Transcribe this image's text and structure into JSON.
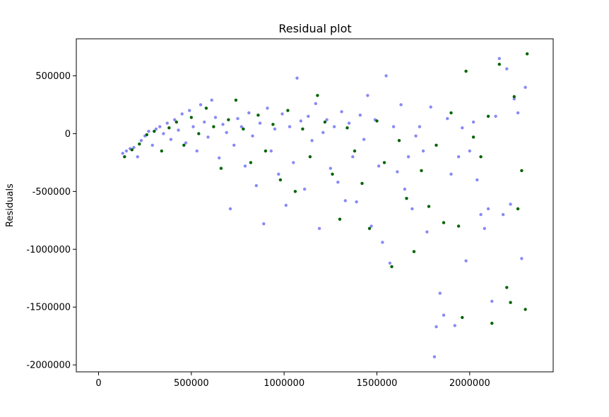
{
  "chart_data": {
    "type": "scatter",
    "title": "Residual plot",
    "xlabel": "",
    "ylabel": "Residuals",
    "xlim": [
      -120000,
      2450000
    ],
    "ylim": [
      -2060000,
      820000
    ],
    "x_ticks": [
      {
        "value": 0,
        "label": "0"
      },
      {
        "value": 500000,
        "label": "500000"
      },
      {
        "value": 1000000,
        "label": "1000000"
      },
      {
        "value": 1500000,
        "label": "1500000"
      },
      {
        "value": 2000000,
        "label": "2000000"
      }
    ],
    "y_ticks": [
      {
        "value": 500000,
        "label": "500000"
      },
      {
        "value": 0,
        "label": "0"
      },
      {
        "value": -500000,
        "label": "-500000"
      },
      {
        "value": -1000000,
        "label": "-1000000"
      },
      {
        "value": -1500000,
        "label": "-1500000"
      },
      {
        "value": -2000000,
        "label": "-2000000"
      }
    ],
    "grid": false,
    "legend": "none",
    "series": [
      {
        "color": "#3a3af0",
        "opacity": 0.6,
        "points": [
          [
            130000,
            -170000
          ],
          [
            150000,
            -150000
          ],
          [
            170000,
            -130000
          ],
          [
            190000,
            -120000
          ],
          [
            210000,
            -200000
          ],
          [
            230000,
            -60000
          ],
          [
            250000,
            -20000
          ],
          [
            270000,
            20000
          ],
          [
            290000,
            -100000
          ],
          [
            310000,
            40000
          ],
          [
            330000,
            60000
          ],
          [
            350000,
            0
          ],
          [
            370000,
            90000
          ],
          [
            390000,
            -50000
          ],
          [
            410000,
            120000
          ],
          [
            430000,
            30000
          ],
          [
            450000,
            170000
          ],
          [
            470000,
            -80000
          ],
          [
            490000,
            200000
          ],
          [
            510000,
            60000
          ],
          [
            530000,
            -150000
          ],
          [
            550000,
            250000
          ],
          [
            570000,
            100000
          ],
          [
            590000,
            -30000
          ],
          [
            610000,
            290000
          ],
          [
            630000,
            140000
          ],
          [
            650000,
            -210000
          ],
          [
            670000,
            80000
          ],
          [
            690000,
            10000
          ],
          [
            710000,
            -650000
          ],
          [
            730000,
            -100000
          ],
          [
            750000,
            130000
          ],
          [
            770000,
            60000
          ],
          [
            790000,
            -280000
          ],
          [
            810000,
            180000
          ],
          [
            830000,
            -20000
          ],
          [
            850000,
            -450000
          ],
          [
            870000,
            90000
          ],
          [
            890000,
            -780000
          ],
          [
            910000,
            220000
          ],
          [
            930000,
            -150000
          ],
          [
            950000,
            40000
          ],
          [
            970000,
            -350000
          ],
          [
            990000,
            170000
          ],
          [
            1010000,
            -620000
          ],
          [
            1030000,
            60000
          ],
          [
            1050000,
            -250000
          ],
          [
            1070000,
            480000
          ],
          [
            1090000,
            110000
          ],
          [
            1110000,
            -480000
          ],
          [
            1130000,
            150000
          ],
          [
            1150000,
            -60000
          ],
          [
            1170000,
            260000
          ],
          [
            1190000,
            -820000
          ],
          [
            1210000,
            10000
          ],
          [
            1230000,
            120000
          ],
          [
            1250000,
            -300000
          ],
          [
            1270000,
            60000
          ],
          [
            1290000,
            -420000
          ],
          [
            1310000,
            190000
          ],
          [
            1330000,
            -580000
          ],
          [
            1350000,
            90000
          ],
          [
            1370000,
            -200000
          ],
          [
            1390000,
            -590000
          ],
          [
            1410000,
            160000
          ],
          [
            1430000,
            -50000
          ],
          [
            1450000,
            330000
          ],
          [
            1470000,
            -800000
          ],
          [
            1490000,
            120000
          ],
          [
            1510000,
            -280000
          ],
          [
            1530000,
            -940000
          ],
          [
            1550000,
            500000
          ],
          [
            1570000,
            -1120000
          ],
          [
            1590000,
            60000
          ],
          [
            1610000,
            -330000
          ],
          [
            1630000,
            250000
          ],
          [
            1650000,
            -480000
          ],
          [
            1670000,
            -200000
          ],
          [
            1690000,
            -650000
          ],
          [
            1710000,
            -20000
          ],
          [
            1730000,
            60000
          ],
          [
            1750000,
            -150000
          ],
          [
            1770000,
            -850000
          ],
          [
            1790000,
            230000
          ],
          [
            1810000,
            -1930000
          ],
          [
            1820000,
            -1670000
          ],
          [
            1840000,
            -1380000
          ],
          [
            1860000,
            -1570000
          ],
          [
            1880000,
            130000
          ],
          [
            1900000,
            -350000
          ],
          [
            1920000,
            -1660000
          ],
          [
            1940000,
            -200000
          ],
          [
            1960000,
            50000
          ],
          [
            1980000,
            -1100000
          ],
          [
            2000000,
            -150000
          ],
          [
            2020000,
            100000
          ],
          [
            2040000,
            -400000
          ],
          [
            2060000,
            -700000
          ],
          [
            2080000,
            -820000
          ],
          [
            2100000,
            -650000
          ],
          [
            2120000,
            -1450000
          ],
          [
            2140000,
            150000
          ],
          [
            2160000,
            650000
          ],
          [
            2180000,
            -700000
          ],
          [
            2200000,
            560000
          ],
          [
            2220000,
            -610000
          ],
          [
            2240000,
            300000
          ],
          [
            2260000,
            180000
          ],
          [
            2280000,
            -1080000
          ],
          [
            2300000,
            400000
          ]
        ]
      },
      {
        "color": "#006400",
        "opacity": 1,
        "points": [
          [
            140000,
            -200000
          ],
          [
            180000,
            -140000
          ],
          [
            220000,
            -90000
          ],
          [
            260000,
            -10000
          ],
          [
            300000,
            20000
          ],
          [
            340000,
            -150000
          ],
          [
            380000,
            50000
          ],
          [
            420000,
            100000
          ],
          [
            460000,
            -100000
          ],
          [
            500000,
            140000
          ],
          [
            540000,
            0
          ],
          [
            580000,
            220000
          ],
          [
            620000,
            60000
          ],
          [
            660000,
            -300000
          ],
          [
            700000,
            120000
          ],
          [
            740000,
            290000
          ],
          [
            780000,
            40000
          ],
          [
            820000,
            -250000
          ],
          [
            860000,
            160000
          ],
          [
            900000,
            -150000
          ],
          [
            940000,
            80000
          ],
          [
            980000,
            -400000
          ],
          [
            1020000,
            200000
          ],
          [
            1060000,
            -500000
          ],
          [
            1100000,
            40000
          ],
          [
            1140000,
            -200000
          ],
          [
            1180000,
            330000
          ],
          [
            1220000,
            100000
          ],
          [
            1260000,
            -350000
          ],
          [
            1300000,
            -740000
          ],
          [
            1340000,
            50000
          ],
          [
            1380000,
            -150000
          ],
          [
            1420000,
            -430000
          ],
          [
            1460000,
            -820000
          ],
          [
            1500000,
            110000
          ],
          [
            1540000,
            -250000
          ],
          [
            1580000,
            -1150000
          ],
          [
            1620000,
            -60000
          ],
          [
            1660000,
            -560000
          ],
          [
            1700000,
            -1020000
          ],
          [
            1740000,
            -320000
          ],
          [
            1780000,
            -630000
          ],
          [
            1820000,
            -100000
          ],
          [
            1860000,
            -770000
          ],
          [
            1900000,
            180000
          ],
          [
            1940000,
            -800000
          ],
          [
            1960000,
            -1590000
          ],
          [
            1980000,
            540000
          ],
          [
            2020000,
            -30000
          ],
          [
            2060000,
            -200000
          ],
          [
            2100000,
            150000
          ],
          [
            2120000,
            -1640000
          ],
          [
            2160000,
            600000
          ],
          [
            2200000,
            -1330000
          ],
          [
            2220000,
            -1460000
          ],
          [
            2240000,
            320000
          ],
          [
            2260000,
            -650000
          ],
          [
            2280000,
            -320000
          ],
          [
            2300000,
            -1520000
          ],
          [
            2310000,
            690000
          ]
        ]
      }
    ]
  }
}
